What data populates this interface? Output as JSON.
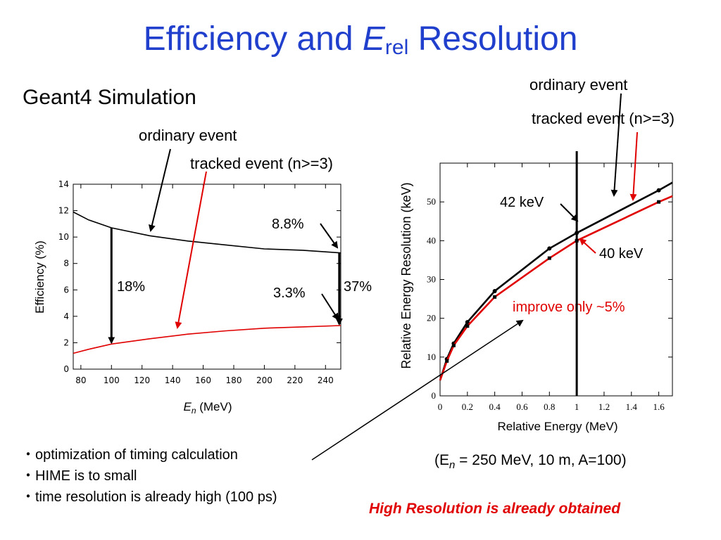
{
  "slide": {
    "title_main": "Efficiency and ",
    "title_italic": "E",
    "title_sub": "rel",
    "title_end": " Resolution",
    "subtitle": "Geant4 Simulation",
    "left_annotations": {
      "ordinary": "ordinary event",
      "tracked": "tracked event (n>=3)",
      "pct_8_8": "8.8%",
      "pct_3_3": "3.3%",
      "pct_18": "18%",
      "pct_37": "37%"
    },
    "right_annotations": {
      "ordinary": "ordinary event",
      "tracked": "tracked event (n>=3)",
      "kev42": "42 keV",
      "kev40": "40 keV",
      "improve": "improve only ~5%"
    },
    "bullets": [
      "・optimization of timing calculation",
      "・HIME is to small",
      "・time resolution is already high (100 ps)"
    ],
    "conditions": "(En = 250 MeV, 10 m, A=100)",
    "conclusion": "High Resolution is already obtained",
    "colors": {
      "title": "#1f3fcc",
      "red": "#e00000",
      "black": "#000000"
    }
  },
  "chart_data": [
    {
      "type": "line",
      "xlabel": "E_n (MeV)",
      "ylabel": "Efficiency (%)",
      "xlim": [
        75,
        250
      ],
      "ylim": [
        0,
        14
      ],
      "xticks": [
        80,
        100,
        120,
        140,
        160,
        180,
        200,
        220,
        240
      ],
      "yticks": [
        0,
        2,
        4,
        6,
        8,
        10,
        12,
        14
      ],
      "series": [
        {
          "name": "ordinary event",
          "color": "#000000",
          "x": [
            75,
            85,
            100,
            125,
            150,
            175,
            200,
            225,
            250
          ],
          "y": [
            11.9,
            11.3,
            10.7,
            10.1,
            9.7,
            9.4,
            9.1,
            9.0,
            8.8
          ]
        },
        {
          "name": "tracked event (n>=3)",
          "color": "#e00000",
          "x": [
            75,
            85,
            100,
            125,
            150,
            175,
            200,
            225,
            250
          ],
          "y": [
            1.2,
            1.5,
            1.9,
            2.3,
            2.65,
            2.9,
            3.1,
            3.2,
            3.3
          ]
        }
      ]
    },
    {
      "type": "line",
      "xlabel": "Relative Energy (MeV)",
      "ylabel": "Relative Energy Resolution (keV)",
      "xlim": [
        0,
        1.7
      ],
      "ylim": [
        0,
        60
      ],
      "xticks": [
        0,
        0.2,
        0.4,
        0.6,
        0.8,
        1,
        1.2,
        1.4,
        1.6
      ],
      "yticks": [
        0,
        10,
        20,
        30,
        40,
        50
      ],
      "series": [
        {
          "name": "ordinary event",
          "color": "#000000",
          "x": [
            0,
            0.05,
            0.1,
            0.2,
            0.4,
            0.8,
            1.0,
            1.6,
            1.7
          ],
          "y": [
            4,
            9.5,
            13.5,
            19,
            27,
            38,
            42,
            53,
            55
          ]
        },
        {
          "name": "tracked event (n>=3)",
          "color": "#e00000",
          "x": [
            0,
            0.05,
            0.1,
            0.2,
            0.4,
            0.8,
            1.0,
            1.6,
            1.7
          ],
          "y": [
            4,
            9,
            13,
            18,
            25.5,
            35.5,
            40,
            50,
            51.5
          ]
        }
      ],
      "vline_x": 1.0
    }
  ]
}
